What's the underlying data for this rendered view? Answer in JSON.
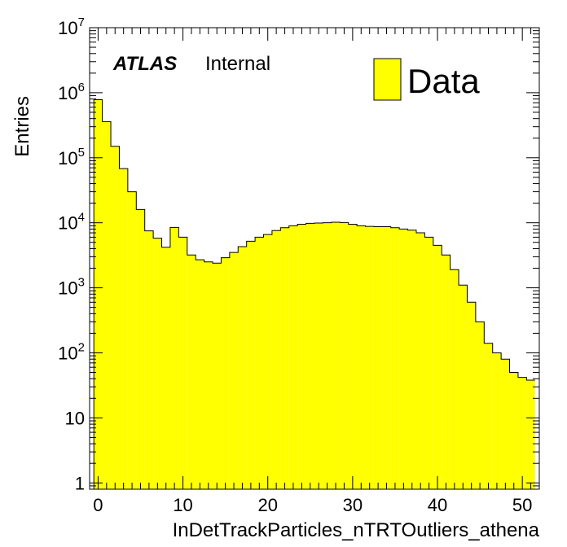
{
  "chart_data": {
    "type": "bar",
    "xlabel": "InDetTrackParticles_nTRTOutliers_athena",
    "ylabel": "Entries",
    "y_scale": "log",
    "xlim": [
      -1,
      52
    ],
    "ylim": [
      0.8,
      10000000
    ],
    "x_ticks": [
      {
        "value": 0,
        "label": "0"
      },
      {
        "value": 10,
        "label": "10"
      },
      {
        "value": 20,
        "label": "20"
      },
      {
        "value": 30,
        "label": "30"
      },
      {
        "value": 40,
        "label": "40"
      },
      {
        "value": 50,
        "label": "50"
      }
    ],
    "y_ticks": [
      {
        "value": 1,
        "base": "1",
        "exp": ""
      },
      {
        "value": 10,
        "base": "10",
        "exp": ""
      },
      {
        "value": 100,
        "base": "10",
        "exp": "2"
      },
      {
        "value": 1000,
        "base": "10",
        "exp": "3"
      },
      {
        "value": 10000,
        "base": "10",
        "exp": "4"
      },
      {
        "value": 100000,
        "base": "10",
        "exp": "5"
      },
      {
        "value": 1000000,
        "base": "10",
        "exp": "6"
      },
      {
        "value": 10000000,
        "base": "10",
        "exp": "7"
      }
    ],
    "bin_width": 1,
    "first_bin_low": -0.5,
    "series": [
      {
        "name": "Data",
        "color": "#ffff00",
        "values": [
          780000,
          360000,
          150000,
          68000,
          30000,
          16000,
          7500,
          5800,
          4200,
          8500,
          6000,
          3200,
          2700,
          2500,
          2400,
          2900,
          3500,
          4300,
          5200,
          6000,
          6600,
          7600,
          8400,
          9000,
          9500,
          9800,
          9900,
          10000,
          10200,
          10100,
          9500,
          9000,
          8800,
          8700,
          8700,
          8400,
          8000,
          7700,
          7000,
          6000,
          4500,
          3200,
          1900,
          1100,
          600,
          300,
          140,
          100,
          80,
          50,
          42,
          38
        ]
      }
    ],
    "legend": {
      "label": "Data",
      "position": "top-right"
    },
    "annotations": {
      "atlas": "ATLAS",
      "status": "Internal"
    }
  }
}
